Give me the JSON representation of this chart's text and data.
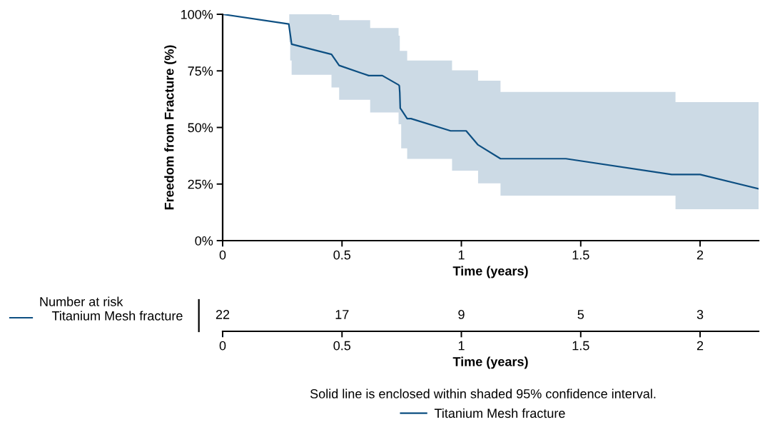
{
  "chart_data": [
    {
      "type": "line",
      "ylabel": "Freedom from Fracture (%)",
      "xlabel": "Time (years)",
      "xlim": [
        0,
        2.245
      ],
      "xticks": [
        0,
        0.5,
        1,
        1.5,
        2
      ],
      "ylim": [
        0,
        100
      ],
      "yticks": [
        {
          "value": 0,
          "label": "0%"
        },
        {
          "value": 25,
          "label": "25%"
        },
        {
          "value": 50,
          "label": "50%"
        },
        {
          "value": 75,
          "label": "75%"
        },
        {
          "value": 100,
          "label": "100%"
        }
      ],
      "grid": false,
      "legend": "bottom",
      "marker": "none",
      "line_style": "solid",
      "annotations": [
        "Solid line is enclosed within shaded 95% confidence interval."
      ],
      "series": [
        {
          "type": "line",
          "name": "Titanium Mesh fracture",
          "color": "#0d4f82",
          "x": [
            0,
            0.277,
            0.279,
            0.283,
            0.289,
            0.456,
            0.488,
            0.612,
            0.618,
            0.669,
            0.737,
            0.74,
            0.742,
            0.744,
            0.748,
            0.773,
            0.789,
            0.955,
            0.961,
            1.02,
            1.07,
            1.164,
            1.438,
            1.881,
            1.897,
            2.0,
            2.245
          ],
          "values": [
            100,
            95.7,
            94.2,
            91.3,
            86.8,
            82.3,
            77.4,
            72.9,
            72.9,
            72.9,
            68.8,
            68.4,
            65.4,
            58.5,
            57.9,
            53.9,
            53.9,
            48.5,
            48.5,
            48.5,
            42.3,
            36.2,
            36.2,
            29.2,
            29.2,
            29.2,
            22.9
          ],
          "lower": [
            null,
            null,
            87.6,
            79.6,
            73.3,
            67.7,
            62.2,
            62.2,
            56.6,
            56.6,
            51.4,
            51.4,
            51.4,
            51.4,
            40.8,
            36.1,
            36.1,
            36.1,
            30.9,
            30.9,
            25.3,
            19.9,
            19.9,
            19.9,
            13.9,
            13.9,
            13.9
          ],
          "upper": [
            null,
            null,
            100,
            100,
            100,
            99.7,
            97.4,
            97.4,
            93.9,
            93.9,
            90.5,
            90.5,
            83.8,
            83.8,
            83.8,
            79.6,
            79.6,
            79.6,
            75.2,
            75.2,
            70.7,
            65.7,
            65.7,
            65.7,
            61.2,
            61.2,
            61.2
          ]
        }
      ]
    },
    {
      "type": "heatmap",
      "title": "Number at risk",
      "xlabel": "Time (years)",
      "categories": [
        "0",
        "0.5",
        "1",
        "1.5",
        "2"
      ],
      "y_categories": [
        "Titanium Mesh fracture"
      ],
      "cells": [
        [
          22,
          17,
          9,
          5,
          3
        ]
      ],
      "data_labels": true
    }
  ]
}
